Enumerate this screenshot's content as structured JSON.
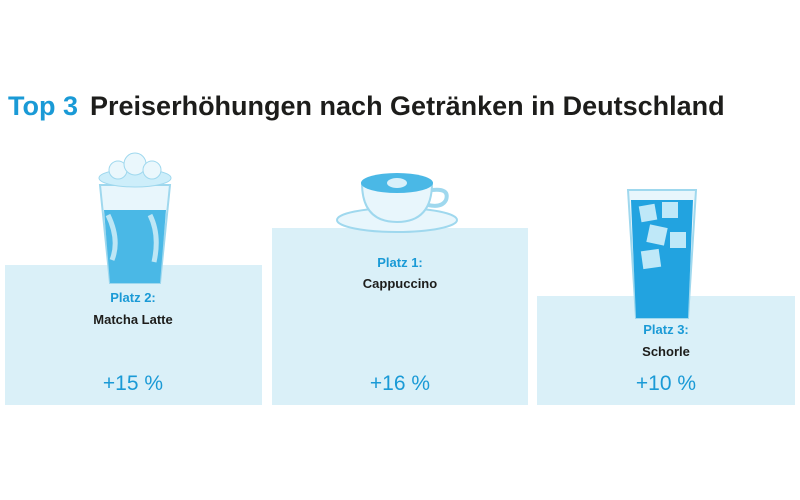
{
  "header": {
    "highlight": "Top 3",
    "title": "Preiserhöhungen nach Getränken in Deutschland"
  },
  "items": [
    {
      "rank": "Platz 2:",
      "name": "Matcha Latte",
      "change": "+15 %"
    },
    {
      "rank": "Platz 1:",
      "name": "Cappuccino",
      "change": "+16 %"
    },
    {
      "rank": "Platz 3:",
      "name": "Schorle",
      "change": "+10 %"
    }
  ]
}
